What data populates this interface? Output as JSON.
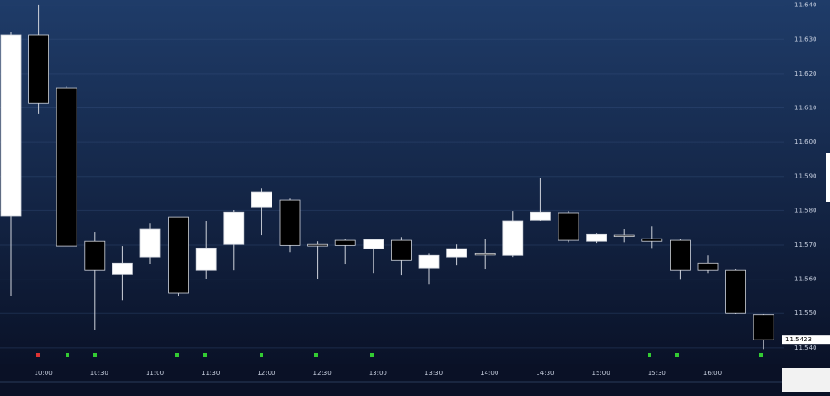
{
  "chart_data": {
    "type": "candlestick",
    "categories": [
      null,
      "10:00",
      null,
      "10:30",
      null,
      "11:00",
      null,
      "11:30",
      null,
      "12:00",
      null,
      "12:30",
      null,
      "13:00",
      null,
      "13:30",
      null,
      "14:00",
      null,
      "14:30",
      null,
      "15:00",
      null,
      "15:30",
      null,
      "16:00",
      null,
      null
    ],
    "open": [
      11.5785,
      11.6314,
      11.6157,
      11.571,
      11.5614,
      11.5665,
      11.5782,
      11.5625,
      11.5702,
      11.5811,
      11.583,
      11.5702,
      11.5713,
      11.5689,
      11.5713,
      11.5633,
      11.5665,
      11.5675,
      11.567,
      11.5771,
      11.5793,
      11.571,
      11.5729,
      11.5718,
      11.5713,
      11.5646,
      11.5625,
      11.5496
    ],
    "high": [
      11.6322,
      11.6402,
      11.6162,
      11.5737,
      11.5697,
      11.5763,
      11.5782,
      11.5769,
      11.5801,
      11.5864,
      11.5835,
      11.571,
      11.5718,
      11.5718,
      11.5723,
      11.5675,
      11.5702,
      11.5718,
      11.5798,
      11.5896,
      11.5798,
      11.5734,
      11.5745,
      11.5755,
      11.5718,
      11.567,
      11.5628,
      11.5498
    ],
    "low": [
      11.5551,
      11.6083,
      11.5697,
      11.5452,
      11.5537,
      11.5644,
      11.5551,
      11.5601,
      11.5625,
      11.5729,
      11.5678,
      11.5601,
      11.5644,
      11.5617,
      11.5612,
      11.5585,
      11.5641,
      11.5628,
      11.5665,
      11.5769,
      11.5707,
      11.5705,
      11.5707,
      11.5691,
      11.5598,
      11.5617,
      11.5498,
      11.5396
    ],
    "close": [
      11.6314,
      11.6114,
      11.5697,
      11.5625,
      11.5646,
      11.5745,
      11.5559,
      11.5691,
      11.5795,
      11.5854,
      11.5699,
      11.5697,
      11.5699,
      11.5715,
      11.5654,
      11.567,
      11.5689,
      11.5673,
      11.5769,
      11.5795,
      11.5713,
      11.5731,
      11.5726,
      11.571,
      11.5625,
      11.5625,
      11.55,
      11.5423
    ],
    "up_color": "#ffffff",
    "down_color": "#000000",
    "last_price": 11.5423,
    "ylim": [
      11.5365,
      11.6415
    ],
    "yticks": [
      {
        "value": 11.64,
        "label": "11.640"
      },
      {
        "value": 11.63,
        "label": "11.630"
      },
      {
        "value": 11.62,
        "label": "11.620"
      },
      {
        "value": 11.61,
        "label": "11.610"
      },
      {
        "value": 11.6,
        "label": "11.600"
      },
      {
        "value": 11.59,
        "label": "11.590"
      },
      {
        "value": 11.58,
        "label": "11.580"
      },
      {
        "value": 11.57,
        "label": "11.570"
      },
      {
        "value": 11.56,
        "label": "11.560"
      },
      {
        "value": 11.55,
        "label": "11.550"
      },
      {
        "value": 11.54,
        "label": "11.540"
      }
    ],
    "grid": true
  }
}
